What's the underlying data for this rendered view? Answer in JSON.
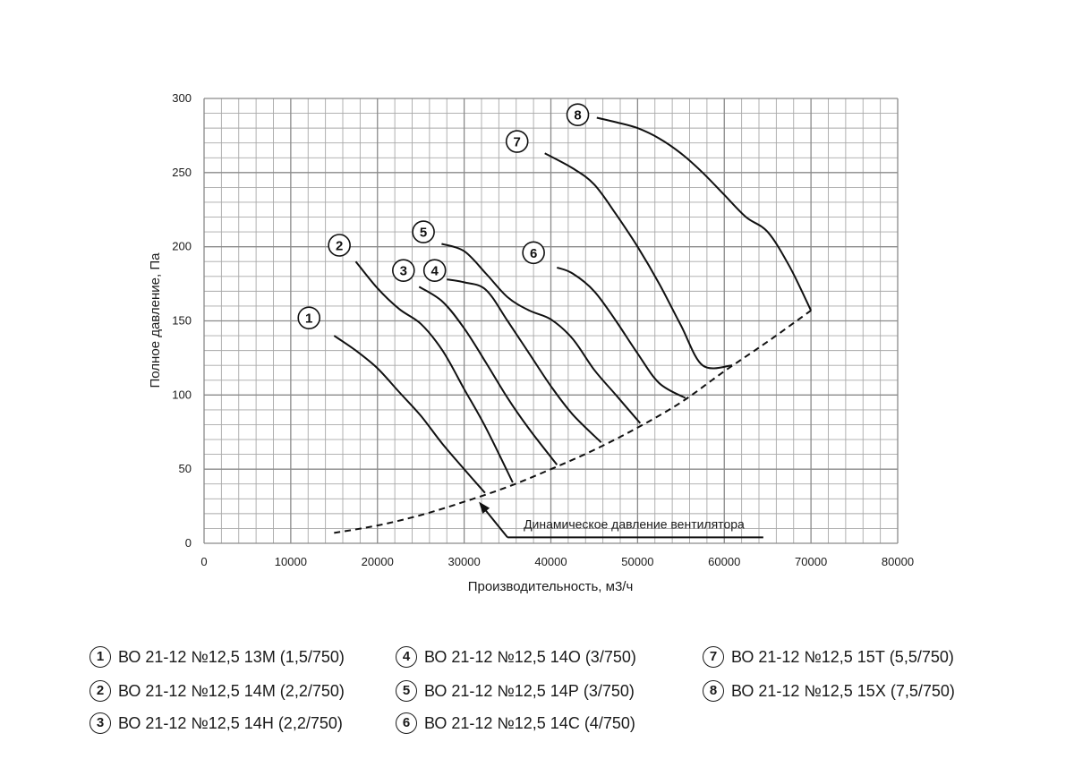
{
  "chart_data": {
    "type": "line",
    "xlabel": "Производительность, м3/ч",
    "ylabel": "Полное давление, Па",
    "xlim": [
      0,
      80000
    ],
    "ylim": [
      0,
      300
    ],
    "x_ticks": [
      "0",
      "10000",
      "20000",
      "30000",
      "40000",
      "50000",
      "60000",
      "70000",
      "80000"
    ],
    "y_ticks": [
      "0",
      "50",
      "100",
      "150",
      "200",
      "250",
      "300"
    ],
    "grid": true,
    "series": [
      {
        "id": "1",
        "name": "ВО 21-12 №12,5 13М (1,5/750)",
        "label_pos": [
          12100,
          152
        ],
        "x": [
          15000,
          17500,
          20000,
          22500,
          25000,
          27500,
          30000,
          32400
        ],
        "y": [
          140,
          130,
          118,
          102,
          86,
          67,
          50,
          34
        ]
      },
      {
        "id": "2",
        "name": "ВО 21-12 №12,5 14М (2,2/750)",
        "label_pos": [
          15600,
          201
        ],
        "x": [
          17500,
          20000,
          22500,
          25000,
          27500,
          30000,
          32500,
          35600
        ],
        "y": [
          190,
          172,
          158,
          148,
          130,
          104,
          78,
          41
        ]
      },
      {
        "id": "3",
        "name": "ВО 21-12 №12,5 14Н (2,2/750)",
        "label_pos": [
          23000,
          184
        ],
        "x": [
          24800,
          27500,
          30000,
          32500,
          35000,
          37500,
          40700
        ],
        "y": [
          173,
          163,
          145,
          122,
          98,
          77,
          53
        ]
      },
      {
        "id": "4",
        "name": "ВО 21-12 №12,5 14О (3/750)",
        "label_pos": [
          26600,
          184
        ],
        "x": [
          28000,
          30000,
          32500,
          35000,
          37500,
          40000,
          42500,
          45800
        ],
        "y": [
          178,
          176,
          171,
          150,
          128,
          106,
          87,
          68
        ]
      },
      {
        "id": "5",
        "name": "ВО 21-12 №12,5 14Р (3/750)",
        "label_pos": [
          25300,
          210
        ],
        "x": [
          27400,
          30000,
          32500,
          35000,
          37500,
          40000,
          42500,
          45000,
          47500,
          50300
        ],
        "y": [
          202,
          197,
          182,
          166,
          157,
          151,
          138,
          117,
          100,
          81
        ]
      },
      {
        "id": "6",
        "name": "ВО 21-12 №12,5 14С (4/750)",
        "label_pos": [
          38000,
          196
        ],
        "x": [
          40700,
          42500,
          45000,
          47500,
          50000,
          52500,
          55500
        ],
        "y": [
          186,
          182,
          170,
          150,
          128,
          108,
          98
        ]
      },
      {
        "id": "7",
        "name": "ВО 21-12 №12,5 15Т (5,5/750)",
        "label_pos": [
          36100,
          271
        ],
        "x": [
          39300,
          42500,
          45000,
          47500,
          50000,
          52500,
          55000,
          57500,
          60900
        ],
        "y": [
          263,
          253,
          242,
          222,
          200,
          175,
          147,
          120,
          120
        ]
      },
      {
        "id": "8",
        "name": "ВО 21-12 №12,5 15Х (7,5/750)",
        "label_pos": [
          43100,
          289
        ],
        "x": [
          45300,
          47500,
          50000,
          52500,
          55000,
          57500,
          60000,
          62500,
          65000,
          67500,
          70000
        ],
        "y": [
          287,
          284,
          280,
          273,
          263,
          250,
          235,
          220,
          210,
          187,
          157
        ]
      }
    ],
    "dynamic_pressure": {
      "x": [
        15000,
        20000,
        25000,
        30000,
        35000,
        40000,
        45000,
        50000,
        55000,
        60000,
        65000,
        70000
      ],
      "y": [
        7,
        12,
        19,
        28,
        38,
        50,
        63,
        78,
        95,
        116,
        136,
        157
      ]
    },
    "annotation": {
      "text": "Динамическое давление вентилятора",
      "text_pos": [
        35000,
        10
      ],
      "line_x": [
        64500
      ],
      "arrow_target": [
        31700,
        28
      ]
    }
  },
  "legend": {
    "items": [
      {
        "num": "1",
        "text": "ВО 21-12 №12,5 13М (1,5/750)"
      },
      {
        "num": "2",
        "text": "ВО 21-12 №12,5 14М (2,2/750)"
      },
      {
        "num": "3",
        "text": "ВО 21-12 №12,5 14Н (2,2/750)"
      },
      {
        "num": "4",
        "text": "ВО 21-12 №12,5 14О (3/750)"
      },
      {
        "num": "5",
        "text": "ВО 21-12 №12,5 14Р (3/750)"
      },
      {
        "num": "6",
        "text": "ВО 21-12 №12,5 14С (4/750)"
      },
      {
        "num": "7",
        "text": "ВО 21-12 №12,5 15Т (5,5/750)"
      },
      {
        "num": "8",
        "text": "ВО 21-12 №12,5 15Х (7,5/750)"
      }
    ]
  }
}
